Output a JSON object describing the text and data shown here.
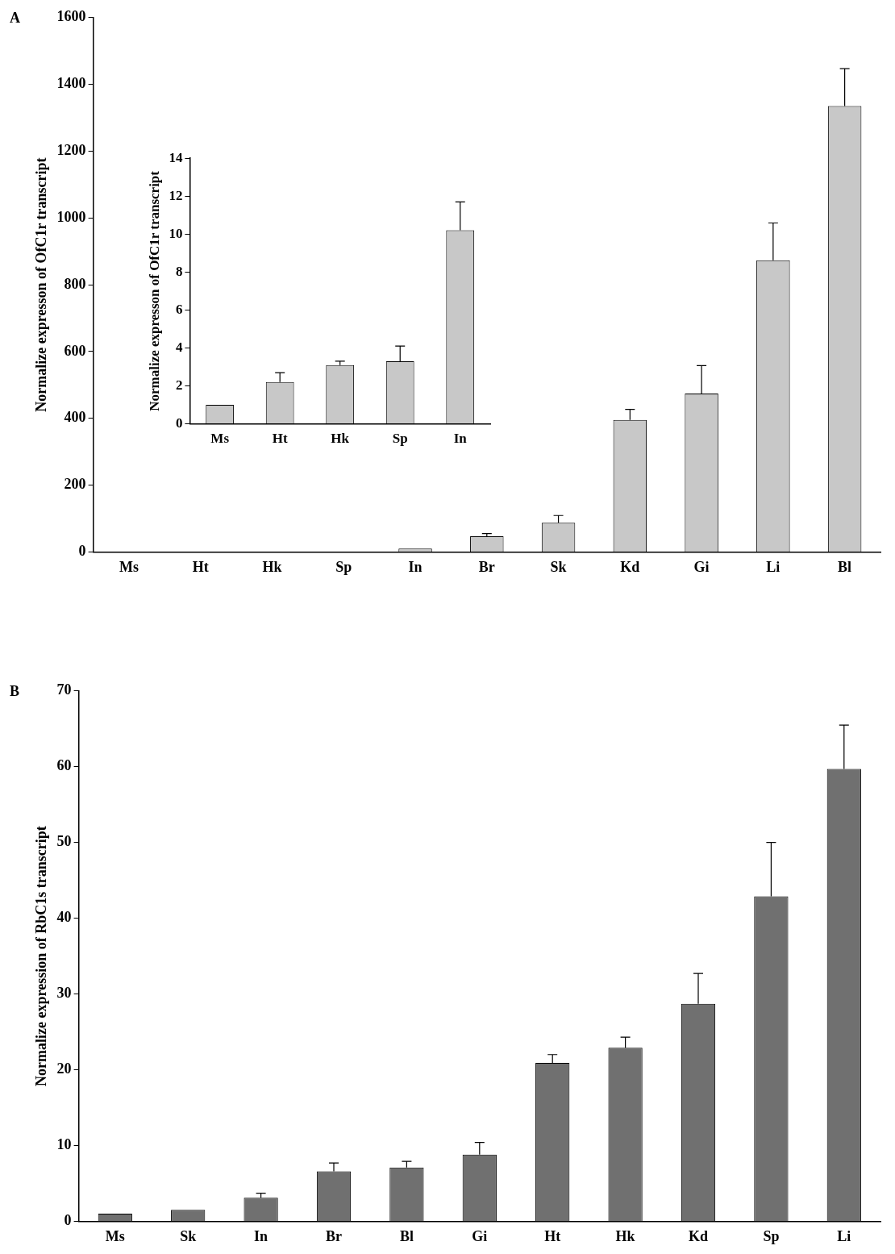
{
  "chart_data": [
    {
      "type": "bar",
      "annotations": [
        "A"
      ],
      "ylabel": "Normalize expresson of OfC1r transcript",
      "categories": [
        "Ms",
        "Ht",
        "Hk",
        "Sp",
        "In",
        "Br",
        "Sk",
        "Kd",
        "Gi",
        "Li",
        "Bl"
      ],
      "values": [
        null,
        null,
        null,
        null,
        10,
        47,
        87,
        395,
        474,
        873,
        1335
      ],
      "errors": [
        null,
        null,
        null,
        null,
        null,
        8,
        22,
        32,
        84,
        112,
        112
      ],
      "color": "#c8c8c8",
      "ylim": [
        0,
        1600
      ],
      "yticks": [
        0,
        200,
        400,
        600,
        800,
        1000,
        1200,
        1400,
        1600
      ]
    },
    {
      "type": "bar",
      "ylabel": "Normalize expresson of OfC1r transcript",
      "categories": [
        "Ms",
        "Ht",
        "Hk",
        "Sp",
        "In"
      ],
      "values": [
        1.0,
        2.2,
        3.1,
        3.3,
        10.2
      ],
      "errors": [
        null,
        0.5,
        0.2,
        0.8,
        1.5
      ],
      "color": "#c8c8c8",
      "ylim": [
        0,
        14
      ],
      "yticks": [
        0,
        2,
        4,
        6,
        8,
        10,
        12,
        14
      ]
    },
    {
      "type": "bar",
      "annotations": [
        "B"
      ],
      "ylabel": "Normalize expression of RbC1s transcript",
      "categories": [
        "Ms",
        "Sk",
        "In",
        "Br",
        "Bl",
        "Gi",
        "Ht",
        "Hk",
        "Kd",
        "Sp",
        "Li"
      ],
      "values": [
        1,
        1.5,
        3.1,
        6.6,
        7.1,
        8.8,
        20.9,
        22.9,
        28.7,
        42.9,
        59.7
      ],
      "errors": [
        null,
        null,
        0.6,
        1.1,
        0.8,
        1.6,
        1.1,
        1.4,
        4.0,
        7.1,
        5.8
      ],
      "color": "#707070",
      "ylim": [
        0,
        70
      ],
      "yticks": [
        0,
        10,
        20,
        30,
        40,
        50,
        60,
        70
      ]
    }
  ]
}
